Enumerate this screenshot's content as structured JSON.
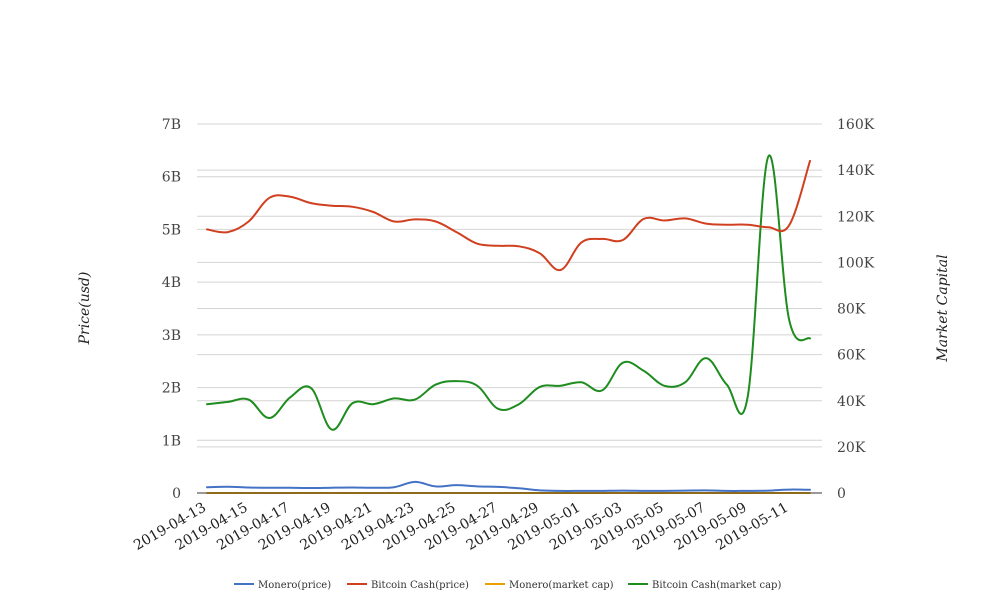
{
  "chart_data": {
    "type": "line",
    "title": "",
    "xlabel": "",
    "ylabel_left": "Price(usd)",
    "ylabel_right": "Market Capital",
    "x": [
      "2019-04-13",
      "2019-04-14",
      "2019-04-15",
      "2019-04-16",
      "2019-04-17",
      "2019-04-18",
      "2019-04-19",
      "2019-04-20",
      "2019-04-21",
      "2019-04-22",
      "2019-04-23",
      "2019-04-24",
      "2019-04-25",
      "2019-04-26",
      "2019-04-27",
      "2019-04-28",
      "2019-04-29",
      "2019-04-30",
      "2019-05-01",
      "2019-05-02",
      "2019-05-03",
      "2019-05-04",
      "2019-05-05",
      "2019-05-06",
      "2019-05-07",
      "2019-05-08",
      "2019-05-09",
      "2019-05-10",
      "2019-05-11",
      "2019-05-12"
    ],
    "x_tick_labels": [
      "2019-04-13",
      "2019-04-15",
      "2019-04-17",
      "2019-04-19",
      "2019-04-21",
      "2019-04-23",
      "2019-04-25",
      "2019-04-27",
      "2019-04-29",
      "2019-05-01",
      "2019-05-03",
      "2019-05-05",
      "2019-05-07",
      "2019-05-09",
      "2019-05-11"
    ],
    "left_axis": {
      "ticks": [
        "0",
        "1B",
        "2B",
        "3B",
        "4B",
        "5B",
        "6B",
        "7B"
      ],
      "ylim": [
        0,
        7000000000
      ]
    },
    "right_axis": {
      "ticks": [
        "0",
        "20K",
        "40K",
        "60K",
        "80K",
        "100K",
        "120K",
        "140K",
        "160K"
      ],
      "ylim": [
        0,
        160000
      ]
    },
    "grid": true,
    "legend_position": "bottom",
    "series": [
      {
        "name": "Monero(price)",
        "color": "#4472c4",
        "axis": "left",
        "values": [
          110000000,
          120000000,
          105000000,
          100000000,
          100000000,
          95000000,
          100000000,
          105000000,
          100000000,
          110000000,
          210000000,
          125000000,
          150000000,
          125000000,
          115000000,
          90000000,
          50000000,
          40000000,
          40000000,
          40000000,
          45000000,
          40000000,
          40000000,
          45000000,
          50000000,
          40000000,
          40000000,
          45000000,
          65000000,
          60000000
        ]
      },
      {
        "name": "Bitcoin Cash(price)",
        "color": "#d04020",
        "axis": "left",
        "values": [
          5000000000,
          4950000000,
          5150000000,
          5600000000,
          5620000000,
          5500000000,
          5450000000,
          5430000000,
          5330000000,
          5150000000,
          5190000000,
          5150000000,
          4950000000,
          4730000000,
          4690000000,
          4680000000,
          4550000000,
          4230000000,
          4750000000,
          4820000000,
          4800000000,
          5200000000,
          5170000000,
          5210000000,
          5110000000,
          5090000000,
          5090000000,
          5040000000,
          5080000000,
          6300000000
        ]
      },
      {
        "name": "Monero(market cap)",
        "color": "#e8a000",
        "axis": "right",
        "values": [
          0,
          0,
          0,
          0,
          0,
          0,
          0,
          0,
          0,
          0,
          0,
          0,
          0,
          0,
          0,
          0,
          0,
          0,
          0,
          0,
          0,
          0,
          0,
          0,
          0,
          0,
          0,
          0,
          0,
          0
        ]
      },
      {
        "name": "Bitcoin Cash(market cap)",
        "color": "#1e8c1e",
        "axis": "right",
        "values": [
          38500,
          39500,
          40500,
          32500,
          41500,
          45500,
          27500,
          39000,
          38500,
          41000,
          40500,
          47000,
          48500,
          46500,
          36500,
          38500,
          46000,
          46500,
          48000,
          44500,
          56500,
          53000,
          46500,
          48000,
          58500,
          47000,
          41500,
          146000,
          75000,
          67000
        ]
      }
    ]
  }
}
